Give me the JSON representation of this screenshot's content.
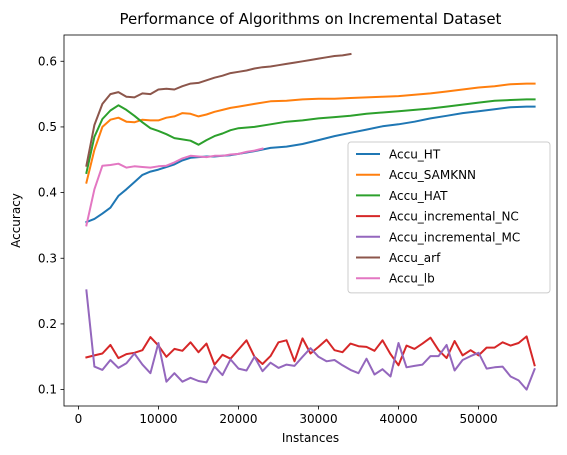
{
  "chart_data": {
    "type": "line",
    "title": "Performance of Algorithms on Incremental Dataset",
    "xlabel": "Instances",
    "ylabel": "Accuracy",
    "xlim": [
      -1800,
      59800
    ],
    "ylim": [
      0.075,
      0.64
    ],
    "xticks": [
      0,
      10000,
      20000,
      30000,
      40000,
      50000
    ],
    "xtick_labels": [
      "0",
      "10000",
      "20000",
      "30000",
      "40000",
      "50000"
    ],
    "yticks": [
      0.1,
      0.2,
      0.3,
      0.4,
      0.5,
      0.6
    ],
    "ytick_labels": [
      "0.1",
      "0.2",
      "0.3",
      "0.4",
      "0.5",
      "0.6"
    ],
    "grid": false,
    "legend_position": "center-right",
    "series": [
      {
        "name": "Accu_HT",
        "color": "#1f77b4",
        "x": [
          1000,
          2000,
          3000,
          4000,
          5000,
          6000,
          7000,
          8000,
          9000,
          10000,
          11000,
          12000,
          13000,
          14000,
          15000,
          16000,
          17000,
          18000,
          19000,
          20000,
          22000,
          24000,
          26000,
          28000,
          30000,
          32000,
          34000,
          36000,
          38000,
          40000,
          42000,
          44000,
          46000,
          48000,
          50000,
          52000,
          54000,
          56000,
          57000
        ],
        "y": [
          0.355,
          0.36,
          0.368,
          0.377,
          0.395,
          0.405,
          0.416,
          0.427,
          0.432,
          0.435,
          0.439,
          0.443,
          0.449,
          0.453,
          0.454,
          0.455,
          0.455,
          0.456,
          0.457,
          0.459,
          0.463,
          0.468,
          0.47,
          0.474,
          0.48,
          0.486,
          0.491,
          0.496,
          0.501,
          0.504,
          0.508,
          0.513,
          0.517,
          0.521,
          0.524,
          0.527,
          0.53,
          0.531,
          0.531
        ]
      },
      {
        "name": "Accu_SAMKNN",
        "color": "#ff7f0e",
        "x": [
          1000,
          2000,
          3000,
          4000,
          5000,
          6000,
          7000,
          8000,
          9000,
          10000,
          11000,
          12000,
          13000,
          14000,
          15000,
          16000,
          17000,
          18000,
          19000,
          20000,
          22000,
          24000,
          26000,
          28000,
          30000,
          32000,
          34000,
          36000,
          38000,
          40000,
          42000,
          44000,
          46000,
          48000,
          50000,
          52000,
          54000,
          56000,
          57000
        ],
        "y": [
          0.415,
          0.465,
          0.5,
          0.511,
          0.514,
          0.508,
          0.507,
          0.511,
          0.51,
          0.51,
          0.514,
          0.516,
          0.521,
          0.52,
          0.516,
          0.519,
          0.523,
          0.526,
          0.529,
          0.531,
          0.535,
          0.539,
          0.54,
          0.542,
          0.543,
          0.543,
          0.544,
          0.545,
          0.546,
          0.547,
          0.549,
          0.551,
          0.554,
          0.557,
          0.56,
          0.562,
          0.565,
          0.566,
          0.566
        ]
      },
      {
        "name": "Accu_HAT",
        "color": "#2ca02c",
        "x": [
          1000,
          2000,
          3000,
          4000,
          5000,
          6000,
          7000,
          8000,
          9000,
          10000,
          11000,
          12000,
          13000,
          14000,
          15000,
          16000,
          17000,
          18000,
          19000,
          20000,
          22000,
          24000,
          26000,
          28000,
          30000,
          32000,
          34000,
          36000,
          38000,
          40000,
          42000,
          44000,
          46000,
          48000,
          50000,
          52000,
          54000,
          56000,
          57000
        ],
        "y": [
          0.43,
          0.485,
          0.512,
          0.525,
          0.533,
          0.526,
          0.517,
          0.507,
          0.498,
          0.494,
          0.489,
          0.483,
          0.481,
          0.479,
          0.473,
          0.48,
          0.486,
          0.49,
          0.495,
          0.498,
          0.5,
          0.504,
          0.508,
          0.51,
          0.513,
          0.515,
          0.517,
          0.52,
          0.522,
          0.524,
          0.526,
          0.528,
          0.531,
          0.534,
          0.537,
          0.54,
          0.541,
          0.542,
          0.542
        ]
      },
      {
        "name": "Accu_incremental_NC",
        "color": "#d62728",
        "x": [
          1000,
          2000,
          3000,
          4000,
          5000,
          6000,
          7000,
          8000,
          9000,
          10000,
          11000,
          12000,
          13000,
          14000,
          15000,
          16000,
          17000,
          18000,
          19000,
          20000,
          21000,
          22000,
          23000,
          24000,
          25000,
          26000,
          27000,
          28000,
          29000,
          30000,
          31000,
          32000,
          33000,
          34000,
          35000,
          36000,
          37000,
          38000,
          39000,
          40000,
          41000,
          42000,
          43000,
          44000,
          45000,
          46000,
          47000,
          48000,
          49000,
          50000,
          51000,
          52000,
          53000,
          54000,
          55000,
          56000,
          57000
        ],
        "y": [
          0.149,
          0.152,
          0.155,
          0.168,
          0.148,
          0.154,
          0.156,
          0.16,
          0.18,
          0.167,
          0.15,
          0.162,
          0.159,
          0.172,
          0.157,
          0.17,
          0.138,
          0.153,
          0.147,
          0.161,
          0.175,
          0.15,
          0.139,
          0.151,
          0.172,
          0.175,
          0.143,
          0.178,
          0.155,
          0.165,
          0.176,
          0.16,
          0.157,
          0.17,
          0.166,
          0.165,
          0.159,
          0.175,
          0.154,
          0.137,
          0.167,
          0.162,
          0.17,
          0.179,
          0.16,
          0.148,
          0.174,
          0.152,
          0.16,
          0.152,
          0.164,
          0.164,
          0.172,
          0.167,
          0.171,
          0.181,
          0.137
        ]
      },
      {
        "name": "Accu_incremental_MC",
        "color": "#9467bd",
        "x": [
          1000,
          2000,
          3000,
          4000,
          5000,
          6000,
          7000,
          8000,
          9000,
          10000,
          11000,
          12000,
          13000,
          14000,
          15000,
          16000,
          17000,
          18000,
          19000,
          20000,
          21000,
          22000,
          23000,
          24000,
          25000,
          26000,
          27000,
          28000,
          29000,
          30000,
          31000,
          32000,
          33000,
          34000,
          35000,
          36000,
          37000,
          38000,
          39000,
          40000,
          41000,
          42000,
          43000,
          44000,
          45000,
          46000,
          47000,
          48000,
          49000,
          50000,
          51000,
          52000,
          53000,
          54000,
          55000,
          56000,
          57000
        ],
        "y": [
          0.251,
          0.135,
          0.13,
          0.145,
          0.133,
          0.14,
          0.155,
          0.138,
          0.125,
          0.171,
          0.112,
          0.125,
          0.112,
          0.118,
          0.113,
          0.111,
          0.135,
          0.122,
          0.146,
          0.132,
          0.129,
          0.15,
          0.128,
          0.141,
          0.133,
          0.138,
          0.136,
          0.15,
          0.163,
          0.15,
          0.143,
          0.145,
          0.137,
          0.13,
          0.125,
          0.147,
          0.123,
          0.131,
          0.12,
          0.171,
          0.134,
          0.136,
          0.138,
          0.151,
          0.151,
          0.168,
          0.129,
          0.145,
          0.151,
          0.156,
          0.132,
          0.134,
          0.135,
          0.12,
          0.114,
          0.1,
          0.131
        ]
      },
      {
        "name": "Accu_arf",
        "color": "#8c564b",
        "x": [
          1000,
          2000,
          3000,
          4000,
          5000,
          6000,
          7000,
          8000,
          9000,
          10000,
          11000,
          12000,
          13000,
          14000,
          15000,
          16000,
          17000,
          18000,
          19000,
          20000,
          21000,
          22000,
          23000,
          24000,
          25000,
          26000,
          27000,
          28000,
          29000,
          30000,
          31000,
          32000,
          33000,
          34000
        ],
        "y": [
          0.441,
          0.503,
          0.535,
          0.55,
          0.553,
          0.546,
          0.545,
          0.551,
          0.55,
          0.557,
          0.558,
          0.557,
          0.562,
          0.566,
          0.567,
          0.571,
          0.575,
          0.578,
          0.582,
          0.584,
          0.586,
          0.589,
          0.591,
          0.592,
          0.594,
          0.596,
          0.598,
          0.6,
          0.602,
          0.604,
          0.606,
          0.608,
          0.609,
          0.611
        ]
      },
      {
        "name": "Accu_lb",
        "color": "#e377c2",
        "x": [
          1000,
          2000,
          3000,
          4000,
          5000,
          6000,
          7000,
          8000,
          9000,
          10000,
          11000,
          12000,
          13000,
          14000,
          15000,
          16000,
          17000,
          18000,
          19000,
          20000,
          21000,
          22000,
          23000
        ],
        "y": [
          0.35,
          0.405,
          0.441,
          0.442,
          0.444,
          0.438,
          0.44,
          0.439,
          0.438,
          0.44,
          0.441,
          0.446,
          0.452,
          0.456,
          0.455,
          0.454,
          0.456,
          0.456,
          0.458,
          0.459,
          0.462,
          0.464,
          0.467
        ]
      }
    ]
  }
}
